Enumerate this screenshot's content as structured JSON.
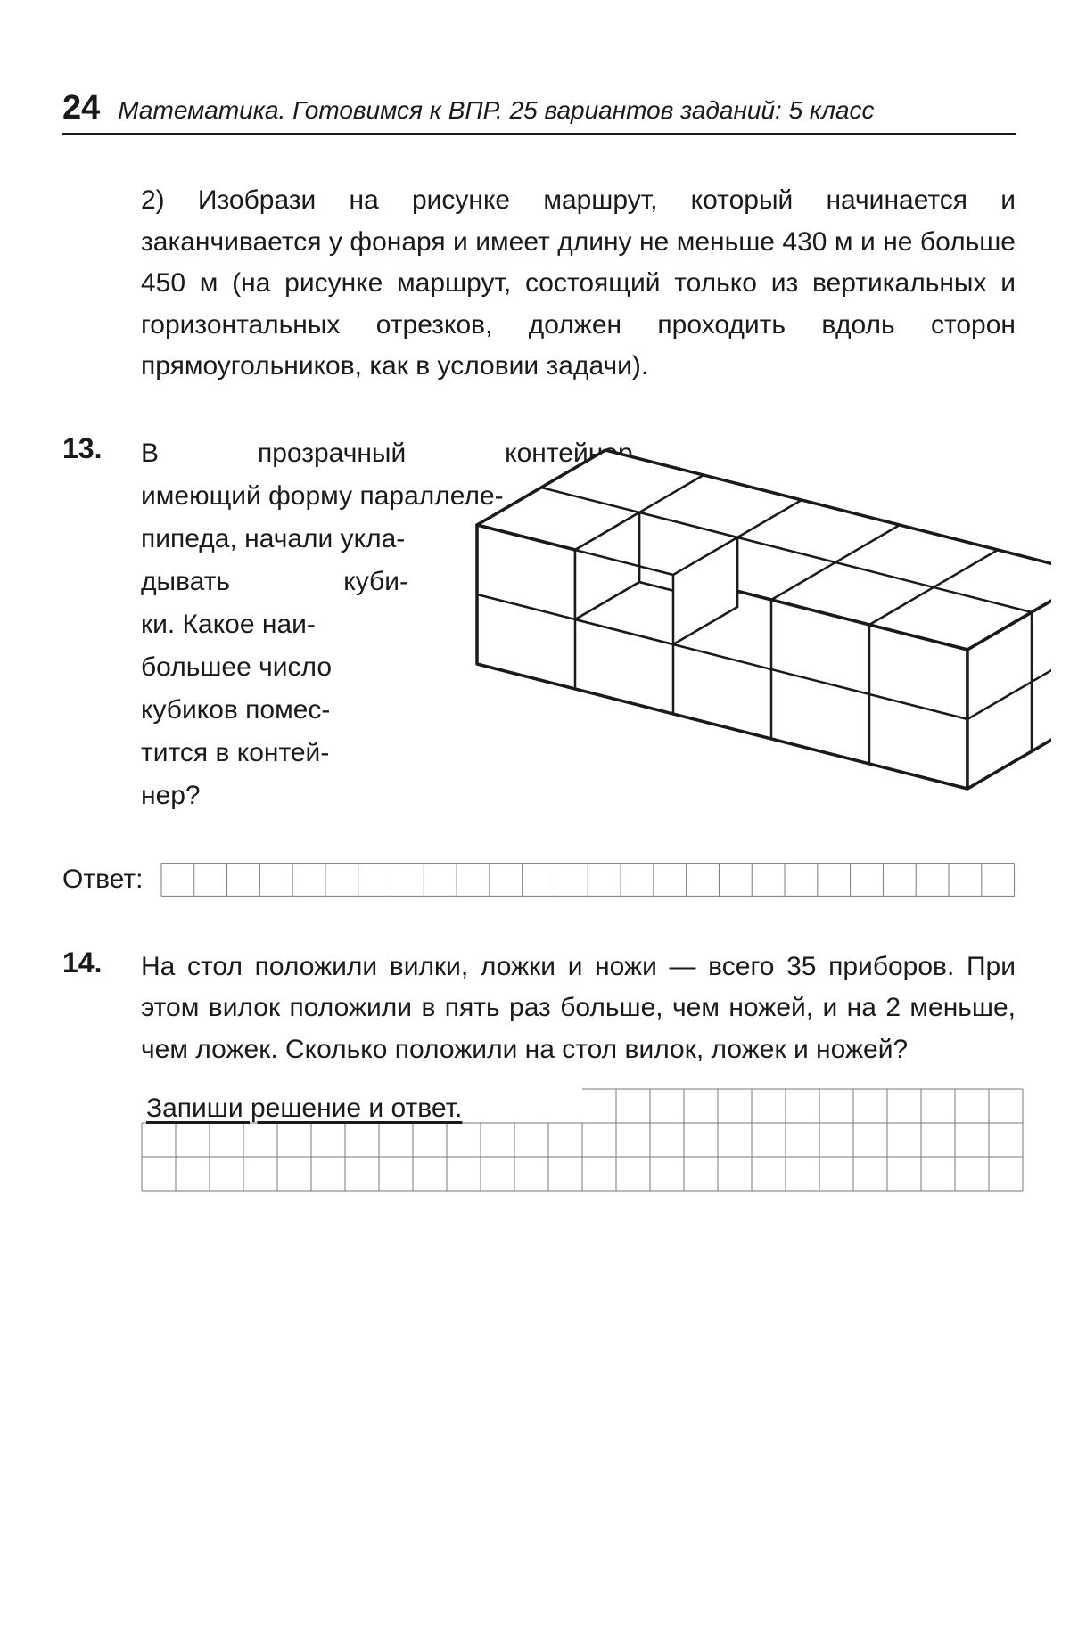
{
  "header": {
    "page_number": "24",
    "title": "Математика. Готовимся к ВПР. 25 вариантов заданий: 5 класс"
  },
  "task2": {
    "label": "2)",
    "text": "Изобрази на рисунке маршрут, который начинается и заканчивается у фонаря и имеет длину не меньше 430 м и не больше 450 м (на рисунке маршрут, состоящий только из вертикальных и горизонтальных отрезков, должен проходить вдоль сторон прямоугольников, как в условии задачи)."
  },
  "task13": {
    "number": "13.",
    "l1": "В   прозрачный   контейнер,",
    "l2": "имеющий  форму  параллеле-",
    "l3": "пипеда,  начали  укла-",
    "l4": "дывать      куби-",
    "l5": "ки.  Какое  наи-",
    "l6": "большее  число",
    "l7": "кубиков  помес-",
    "l8": "тится  в  контей-",
    "l9": "нер?",
    "diagram": {
      "type": "isometric-box",
      "cols": 5,
      "rows": 2,
      "layers": 2,
      "stroke": "#1a1a1a",
      "stroke_width": 2.5,
      "fill": "#ffffff"
    }
  },
  "answer": {
    "label": "Ответ:",
    "grid": {
      "cols": 26,
      "rows": 1,
      "cell": 38,
      "stroke": "#777"
    }
  },
  "task14": {
    "number": "14.",
    "text": "На стол положили вилки, ложки и ножи — всего 35 приборов. При этом вилок положили в пять раз больше, чем ножей, и на 2 меньше, чем ложек. Сколько положили на стол вилок, ложек и ножей?",
    "instruction": "Запиши решение и ответ.",
    "grid": {
      "cols": 26,
      "rows": 3,
      "cell": 38,
      "stroke": "#777"
    }
  },
  "colors": {
    "text": "#1a1a1a",
    "bg": "#ffffff",
    "grid": "#777777"
  }
}
